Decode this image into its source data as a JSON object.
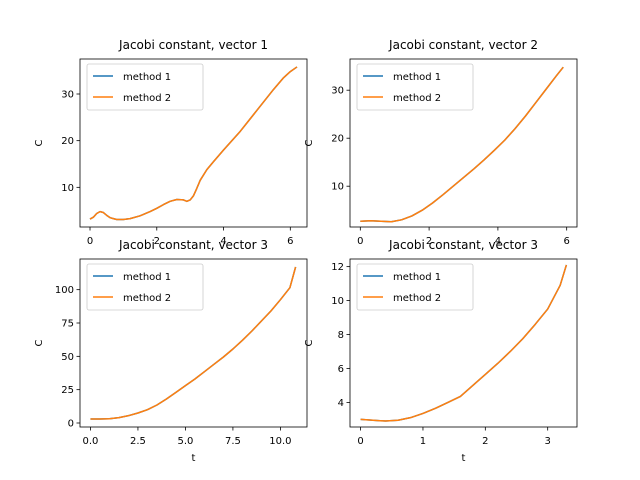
{
  "figure": {
    "background": "#ffffff"
  },
  "chart_data": [
    {
      "type": "line",
      "title": "Jacobi constant, vector 1",
      "xlabel": "",
      "ylabel": "C",
      "xlim": [
        -0.3,
        6.5
      ],
      "ylim": [
        1.5,
        37.5
      ],
      "xticks": [
        0,
        2,
        4,
        6
      ],
      "yticks": [
        10,
        20,
        30
      ],
      "grid": false,
      "legend": "upper-left",
      "series": [
        {
          "name": "method 1",
          "color": "#1f77b4",
          "x": [
            0,
            0.1,
            0.2,
            0.3,
            0.4,
            0.5,
            0.6,
            0.7,
            0.8,
            1.0,
            1.2,
            1.5,
            1.8,
            2.0,
            2.2,
            2.4,
            2.6,
            2.8,
            2.9,
            3.0,
            3.1,
            3.2,
            3.3,
            3.5,
            3.7,
            4.0,
            4.5,
            5.0,
            5.5,
            5.8,
            6.0,
            6.2
          ],
          "y": [
            3.2,
            3.6,
            4.4,
            4.8,
            4.6,
            4.0,
            3.5,
            3.3,
            3.1,
            3.1,
            3.3,
            3.9,
            4.8,
            5.5,
            6.3,
            7.0,
            7.4,
            7.3,
            7.0,
            7.3,
            8.2,
            9.8,
            11.5,
            13.8,
            15.5,
            18.0,
            22.0,
            26.5,
            31.0,
            33.5,
            34.8,
            35.8
          ]
        },
        {
          "name": "method 2",
          "color": "#ff7f0e",
          "x": [
            0,
            0.1,
            0.2,
            0.3,
            0.4,
            0.5,
            0.6,
            0.7,
            0.8,
            1.0,
            1.2,
            1.5,
            1.8,
            2.0,
            2.2,
            2.4,
            2.6,
            2.8,
            2.9,
            3.0,
            3.1,
            3.2,
            3.3,
            3.5,
            3.7,
            4.0,
            4.5,
            5.0,
            5.5,
            5.8,
            6.0,
            6.2
          ],
          "y": [
            3.2,
            3.6,
            4.4,
            4.8,
            4.6,
            4.0,
            3.5,
            3.3,
            3.1,
            3.1,
            3.3,
            3.9,
            4.8,
            5.5,
            6.3,
            7.0,
            7.4,
            7.3,
            7.0,
            7.3,
            8.2,
            9.8,
            11.5,
            13.8,
            15.5,
            18.0,
            22.0,
            26.5,
            31.0,
            33.5,
            34.8,
            35.8
          ]
        }
      ]
    },
    {
      "type": "line",
      "title": "Jacobi constant, vector 2",
      "xlabel": "",
      "ylabel": "C",
      "xlim": [
        -0.3,
        6.3
      ],
      "ylim": [
        1.5,
        36.5
      ],
      "xticks": [
        0,
        2,
        4,
        6
      ],
      "yticks": [
        10,
        20,
        30
      ],
      "grid": false,
      "legend": "upper-left",
      "series": [
        {
          "name": "method 1",
          "color": "#1f77b4",
          "x": [
            0,
            0.3,
            0.6,
            0.9,
            1.2,
            1.5,
            1.8,
            2.1,
            2.4,
            2.7,
            3.0,
            3.3,
            3.6,
            3.9,
            4.2,
            4.5,
            4.8,
            5.1,
            5.4,
            5.7,
            5.9
          ],
          "y": [
            2.7,
            2.8,
            2.7,
            2.6,
            3.0,
            3.8,
            5.0,
            6.5,
            8.2,
            10.0,
            11.8,
            13.6,
            15.5,
            17.5,
            19.6,
            22.0,
            24.6,
            27.4,
            30.2,
            33.0,
            34.8
          ]
        },
        {
          "name": "method 2",
          "color": "#ff7f0e",
          "x": [
            0,
            0.3,
            0.6,
            0.9,
            1.2,
            1.5,
            1.8,
            2.1,
            2.4,
            2.7,
            3.0,
            3.3,
            3.6,
            3.9,
            4.2,
            4.5,
            4.8,
            5.1,
            5.4,
            5.7,
            5.9
          ],
          "y": [
            2.7,
            2.8,
            2.7,
            2.6,
            3.0,
            3.8,
            5.0,
            6.5,
            8.2,
            10.0,
            11.8,
            13.6,
            15.5,
            17.5,
            19.6,
            22.0,
            24.6,
            27.4,
            30.2,
            33.0,
            34.8
          ]
        }
      ]
    },
    {
      "type": "line",
      "title": "Jacobi constant, vector 3",
      "xlabel": "t",
      "ylabel": "C",
      "xlim": [
        -0.55,
        11.4
      ],
      "ylim": [
        -3.0,
        123.0
      ],
      "xticks": [
        0.0,
        2.5,
        5.0,
        7.5,
        10.0
      ],
      "xtick_labels": [
        "0.0",
        "2.5",
        "5.0",
        "7.5",
        "10.0"
      ],
      "yticks": [
        0,
        25,
        50,
        75,
        100
      ],
      "grid": false,
      "legend": "upper-left",
      "series": [
        {
          "name": "method 1",
          "color": "#1f77b4",
          "x": [
            0,
            0.5,
            1.0,
            1.5,
            2.0,
            2.5,
            3.0,
            3.5,
            4.0,
            4.5,
            5.0,
            5.5,
            6.0,
            6.5,
            7.0,
            7.5,
            8.0,
            8.5,
            9.0,
            9.5,
            10.0,
            10.5,
            10.8
          ],
          "y": [
            3.0,
            3.0,
            3.2,
            4.0,
            5.5,
            7.5,
            10.0,
            13.5,
            18.0,
            23.0,
            28.0,
            33.0,
            38.5,
            44.0,
            49.5,
            55.5,
            62.0,
            69.0,
            76.5,
            84.0,
            92.5,
            101.5,
            117.0
          ]
        },
        {
          "name": "method 2",
          "color": "#ff7f0e",
          "x": [
            0,
            0.5,
            1.0,
            1.5,
            2.0,
            2.5,
            3.0,
            3.5,
            4.0,
            4.5,
            5.0,
            5.5,
            6.0,
            6.5,
            7.0,
            7.5,
            8.0,
            8.5,
            9.0,
            9.5,
            10.0,
            10.5,
            10.8
          ],
          "y": [
            3.0,
            3.0,
            3.2,
            4.0,
            5.5,
            7.5,
            10.0,
            13.5,
            18.0,
            23.0,
            28.0,
            33.0,
            38.5,
            44.0,
            49.5,
            55.5,
            62.0,
            69.0,
            76.5,
            84.0,
            92.5,
            101.5,
            117.0
          ]
        }
      ]
    },
    {
      "type": "line",
      "title": "Jacobi constant, vector 3",
      "xlabel": "t",
      "ylabel": "C",
      "xlim": [
        -0.17,
        3.47
      ],
      "ylim": [
        2.55,
        12.45
      ],
      "xticks": [
        0,
        1,
        2,
        3
      ],
      "yticks": [
        4,
        6,
        8,
        10,
        12
      ],
      "grid": false,
      "legend": "upper-left",
      "series": [
        {
          "name": "method 1",
          "color": "#1f77b4",
          "x": [
            0,
            0.2,
            0.4,
            0.6,
            0.8,
            1.0,
            1.2,
            1.4,
            1.6,
            1.8,
            2.0,
            2.2,
            2.4,
            2.6,
            2.8,
            3.0,
            3.2,
            3.3
          ],
          "y": [
            3.0,
            2.95,
            2.9,
            2.95,
            3.1,
            3.35,
            3.65,
            4.0,
            4.35,
            5.0,
            5.65,
            6.3,
            7.0,
            7.75,
            8.6,
            9.5,
            10.9,
            12.1
          ]
        },
        {
          "name": "method 2",
          "color": "#ff7f0e",
          "x": [
            0,
            0.2,
            0.4,
            0.6,
            0.8,
            1.0,
            1.2,
            1.4,
            1.6,
            1.8,
            2.0,
            2.2,
            2.4,
            2.6,
            2.8,
            3.0,
            3.2,
            3.3
          ],
          "y": [
            3.0,
            2.95,
            2.9,
            2.95,
            3.1,
            3.35,
            3.65,
            4.0,
            4.35,
            5.0,
            5.65,
            6.3,
            7.0,
            7.75,
            8.6,
            9.5,
            10.9,
            12.1
          ]
        }
      ]
    }
  ]
}
